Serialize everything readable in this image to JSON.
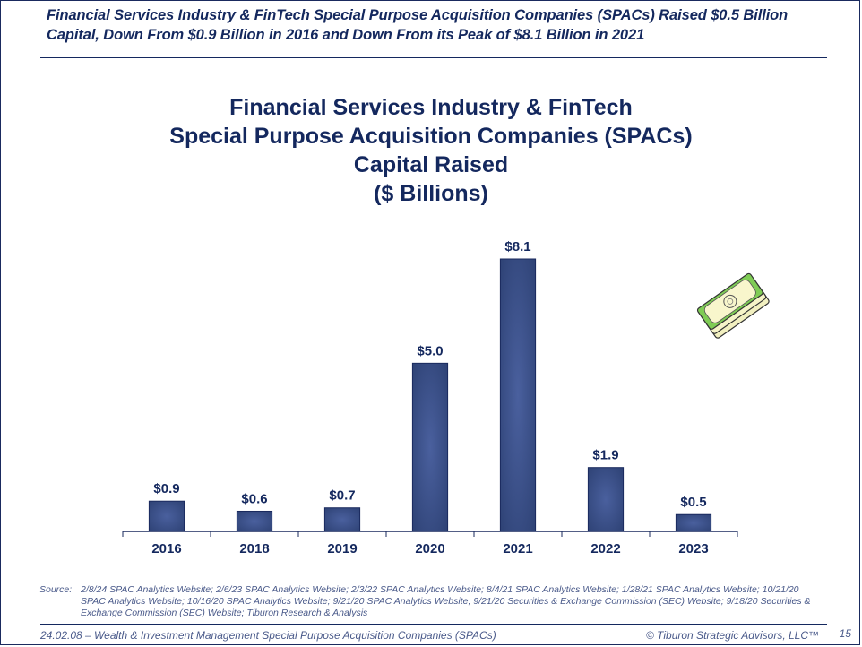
{
  "slide": {
    "headline": "Financial Services Industry & FinTech Special Purpose Acquisition Companies (SPACs) Raised $0.5 Billion Capital, Down From $0.9 Billion in 2016 and Down From its Peak of $8.1 Billion in 2021",
    "source_label": "Source:",
    "source_text": "2/8/24 SPAC Analytics Website; 2/6/23 SPAC Analytics Website; 2/3/22 SPAC Analytics Website; 8/4/21 SPAC Analytics Website; 1/28/21 SPAC Analytics Website; 10/21/20 SPAC Analytics Website; 10/16/20 SPAC Analytics Website; 9/21/20 SPAC Analytics Website; 9/21/20 Securities & Exchange Commission (SEC) Website; 9/18/20 Securities & Exchange Commission (SEC) Website; Tiburon Research & Analysis",
    "footer_left": "24.02.08 – Wealth & Investment Management  Special Purpose Acquisition Companies  (SPACs)",
    "footer_right": "© Tiburon Strategic Advisors, LLC™",
    "page_number": "15",
    "decoration_icon": "money-stack-icon"
  },
  "chart_data": {
    "type": "bar",
    "title_lines": [
      "Financial Services Industry & FinTech",
      "Special Purpose Acquisition Companies (SPACs)",
      "Capital Raised",
      "($ Billions)"
    ],
    "categories": [
      "2016",
      "2018",
      "2019",
      "2020",
      "2021",
      "2022",
      "2023"
    ],
    "values": [
      0.9,
      0.6,
      0.7,
      5.0,
      8.1,
      1.9,
      0.5
    ],
    "data_labels": [
      "$0.9",
      "$0.6",
      "$0.7",
      "$5.0",
      "$8.1",
      "$1.9",
      "$0.5"
    ],
    "xlabel": "",
    "ylabel": "",
    "ylim": [
      0,
      8.1
    ],
    "grid": false,
    "legend": "none",
    "colors": {
      "bar": "#3a4f8a",
      "bar_edge": "#1a2a5e",
      "text": "#14285e"
    }
  }
}
